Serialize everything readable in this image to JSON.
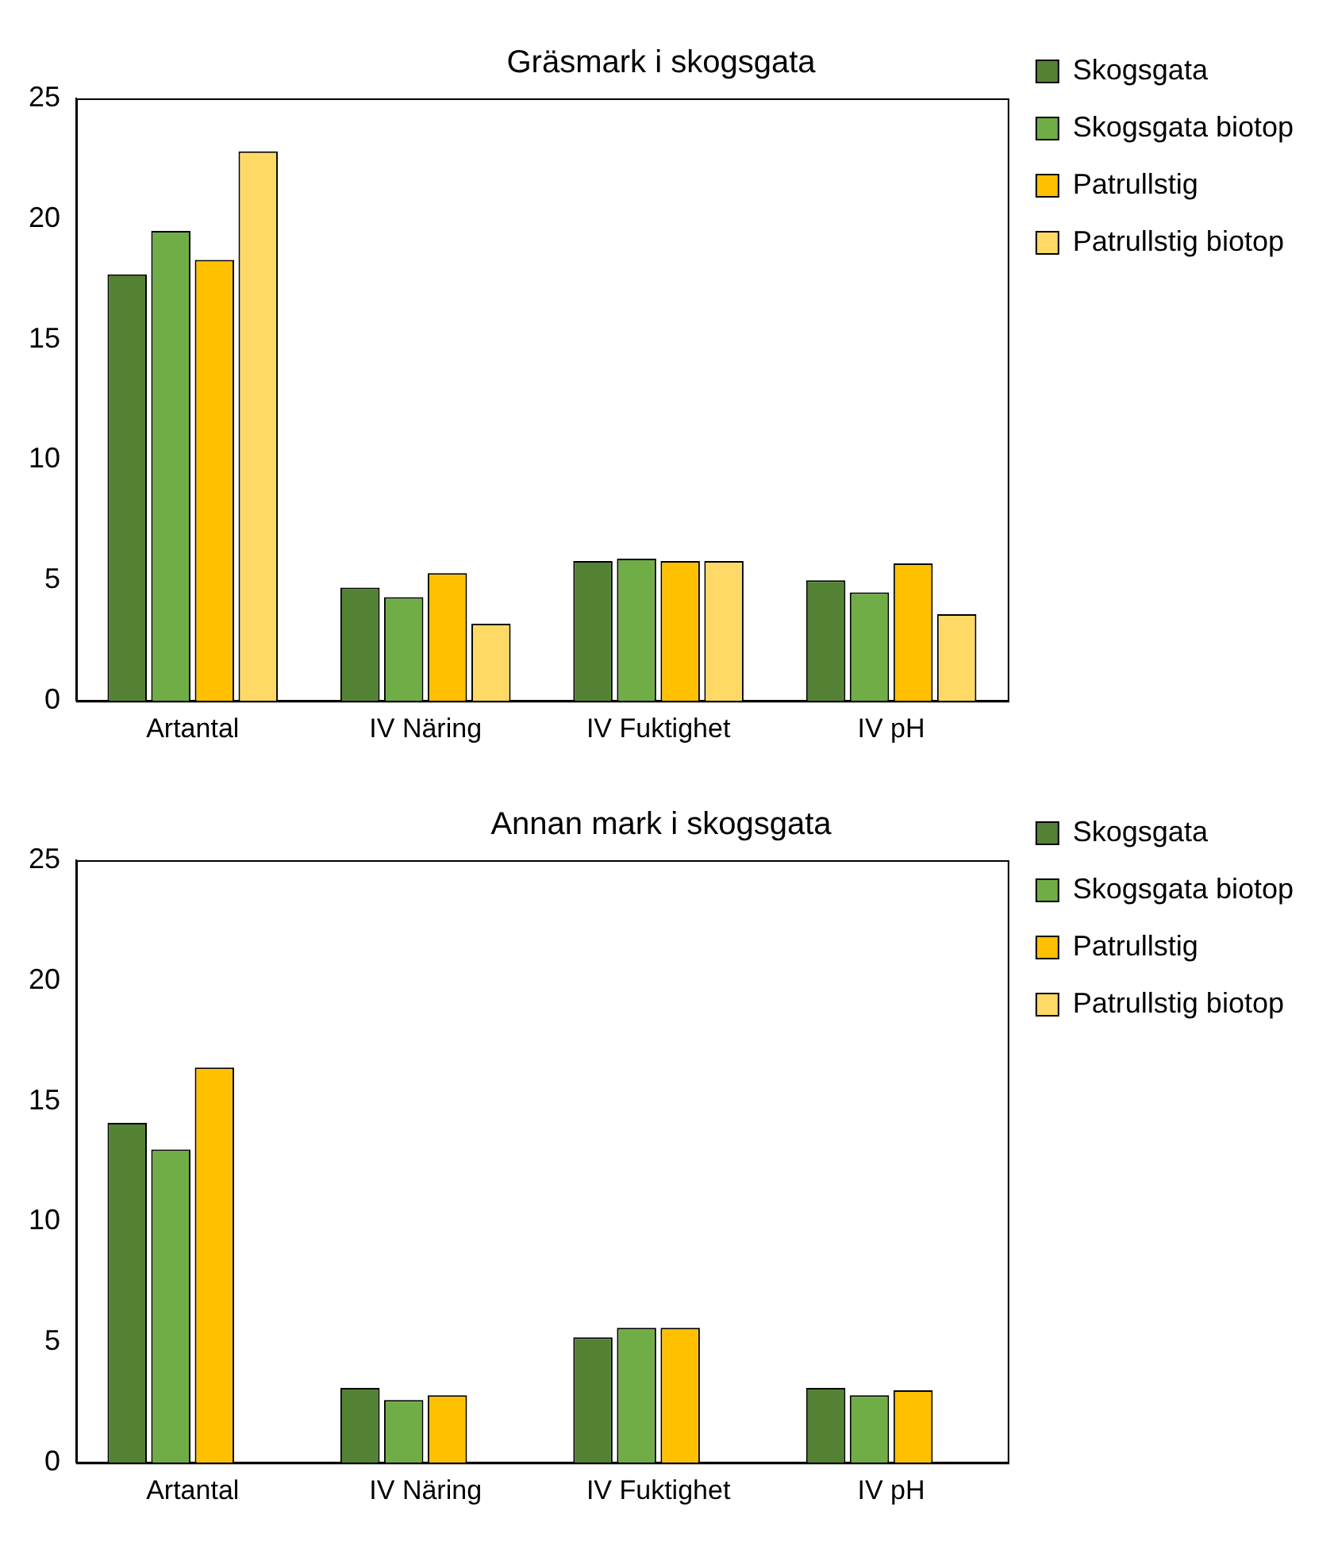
{
  "chart_data": [
    {
      "type": "bar",
      "title": "Gräsmark i skogsgata",
      "categories": [
        "Artantal",
        "IV Näring",
        "IV Fuktighet",
        "IV pH"
      ],
      "series": [
        {
          "name": "Skogsgata",
          "color": "#548235",
          "values": [
            17.7,
            4.7,
            5.8,
            5.0
          ]
        },
        {
          "name": "Skogsgata biotop",
          "color": "#70ad47",
          "values": [
            19.5,
            4.3,
            5.9,
            4.5
          ]
        },
        {
          "name": "Patrullstig",
          "color": "#ffc000",
          "values": [
            18.3,
            5.3,
            5.8,
            5.7
          ]
        },
        {
          "name": "Patrullstig biotop",
          "color": "#ffd966",
          "values": [
            22.8,
            3.2,
            5.8,
            3.6
          ]
        }
      ],
      "ylim": [
        0,
        25
      ],
      "yticks": [
        0,
        5,
        10,
        15,
        20,
        25
      ],
      "legend": "top right"
    },
    {
      "type": "bar",
      "title": "Annan mark i skogsgata",
      "categories": [
        "Artantal",
        "IV Näring",
        "IV Fuktighet",
        "IV pH"
      ],
      "series": [
        {
          "name": "Skogsgata",
          "color": "#548235",
          "values": [
            14.1,
            3.1,
            5.2,
            3.1
          ]
        },
        {
          "name": "Skogsgata biotop",
          "color": "#70ad47",
          "values": [
            13.0,
            2.6,
            5.6,
            2.8
          ]
        },
        {
          "name": "Patrullstig",
          "color": "#ffc000",
          "values": [
            16.4,
            2.8,
            5.6,
            3.0
          ]
        },
        {
          "name": "Patrullstig biotop",
          "color": "#ffd966",
          "values": [
            null,
            null,
            null,
            null
          ]
        }
      ],
      "ylim": [
        0,
        25
      ],
      "yticks": [
        0,
        5,
        10,
        15,
        20,
        25
      ],
      "legend": "top right"
    }
  ]
}
